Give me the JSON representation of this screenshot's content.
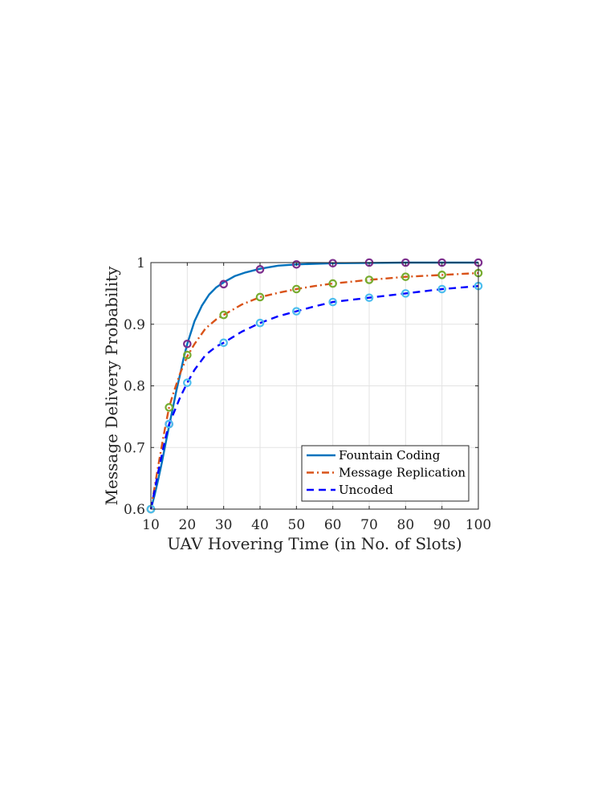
{
  "chart_data": {
    "type": "line",
    "title": "",
    "xlabel": "UAV Hovering Time (in No. of Slots)",
    "ylabel": "Message Delivery Probability",
    "xlim": [
      10,
      100
    ],
    "ylim": [
      0.6,
      1
    ],
    "xticks": [
      10,
      20,
      30,
      40,
      50,
      60,
      70,
      80,
      90,
      100
    ],
    "yticks": [
      0.6,
      0.7,
      0.8,
      0.9,
      1
    ],
    "ytick_labels": [
      "0.6",
      "0.7",
      "0.8",
      "0.9",
      "1"
    ],
    "grid": true,
    "legend_position": "bottom-right",
    "series": [
      {
        "name": "Fountain Coding",
        "color": "#0072BD",
        "line_style": "solid",
        "marker_color": "#7E2F8E",
        "line": {
          "x": [
            10,
            11,
            12,
            13,
            14,
            15,
            16,
            17,
            18,
            19,
            20,
            22,
            24,
            26,
            28,
            30,
            33,
            36,
            40,
            45,
            50,
            55,
            60,
            70,
            80,
            90,
            100
          ],
          "y": [
            0.6,
            0.622,
            0.648,
            0.675,
            0.705,
            0.735,
            0.763,
            0.792,
            0.818,
            0.845,
            0.868,
            0.905,
            0.93,
            0.948,
            0.96,
            0.968,
            0.978,
            0.984,
            0.99,
            0.995,
            0.997,
            0.998,
            0.999,
            0.9995,
            1.0,
            1.0,
            1.0
          ]
        },
        "markers": {
          "x": [
            10,
            15,
            20,
            30,
            40,
            50,
            60,
            70,
            80,
            90,
            100
          ],
          "y": [
            0.6,
            0.738,
            0.868,
            0.965,
            0.989,
            0.997,
            0.999,
            1.0,
            1.0,
            1.0,
            1.0
          ]
        }
      },
      {
        "name": "Message Replication",
        "color": "#D95319",
        "line_style": "dashdot",
        "marker_color": "#77AC30",
        "line": {
          "x": [
            10,
            12,
            14,
            15,
            16,
            18,
            20,
            22,
            25,
            28,
            30,
            35,
            40,
            45,
            50,
            55,
            60,
            70,
            80,
            90,
            100
          ],
          "y": [
            0.6,
            0.67,
            0.735,
            0.765,
            0.785,
            0.82,
            0.848,
            0.868,
            0.893,
            0.908,
            0.915,
            0.932,
            0.944,
            0.951,
            0.957,
            0.962,
            0.966,
            0.972,
            0.977,
            0.98,
            0.983
          ]
        },
        "markers": {
          "x": [
            10,
            15,
            20,
            30,
            40,
            50,
            60,
            70,
            80,
            90,
            100
          ],
          "y": [
            0.6,
            0.765,
            0.85,
            0.915,
            0.944,
            0.957,
            0.966,
            0.972,
            0.977,
            0.98,
            0.983
          ]
        }
      },
      {
        "name": "Uncoded",
        "color": "#0000FF",
        "line_style": "dashed",
        "marker_color": "#4DBEEE",
        "line": {
          "x": [
            10,
            12,
            14,
            15,
            16,
            18,
            20,
            22,
            25,
            28,
            30,
            35,
            40,
            45,
            50,
            55,
            60,
            70,
            80,
            90,
            100
          ],
          "y": [
            0.6,
            0.66,
            0.715,
            0.738,
            0.752,
            0.781,
            0.805,
            0.826,
            0.85,
            0.864,
            0.87,
            0.888,
            0.902,
            0.913,
            0.921,
            0.929,
            0.936,
            0.943,
            0.95,
            0.957,
            0.962
          ]
        },
        "markers": {
          "x": [
            10,
            15,
            20,
            30,
            40,
            50,
            60,
            70,
            80,
            90,
            100
          ],
          "y": [
            0.6,
            0.738,
            0.805,
            0.87,
            0.902,
            0.921,
            0.936,
            0.943,
            0.95,
            0.957,
            0.962
          ]
        }
      }
    ]
  }
}
